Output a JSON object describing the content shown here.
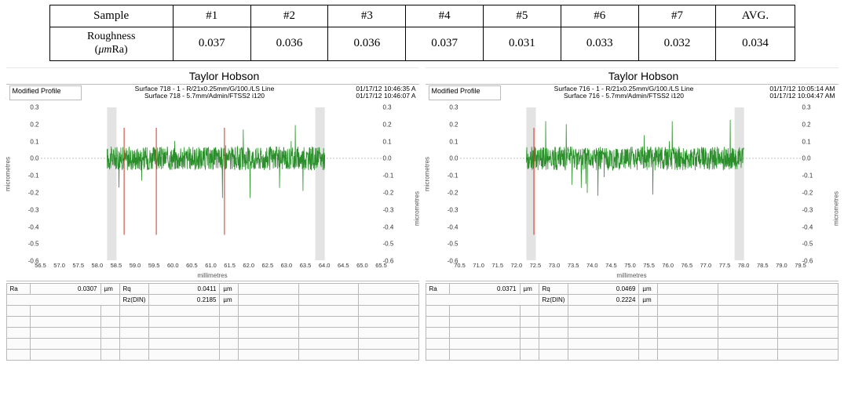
{
  "table": {
    "headers": [
      "Sample",
      "#1",
      "#2",
      "#3",
      "#4",
      "#5",
      "#6",
      "#7",
      "AVG."
    ],
    "row_label_line1": "Roughness",
    "row_label_line2": "(µmRa)",
    "values": [
      "0.037",
      "0.036",
      "0.036",
      "0.037",
      "0.031",
      "0.033",
      "0.032",
      "0.034"
    ],
    "border_color": "#000000",
    "header_fontsize": 15,
    "value_fontsize": 15
  },
  "charts": {
    "common": {
      "brand": "Taylor Hobson",
      "trace_color": "#2a8f2a",
      "excluded_fill": "#e3e3e3",
      "grid_color": "#d0d0d0",
      "zero_line_color": "#aaaaaa",
      "marker_color": "#cc3322",
      "y_label": "micrometres",
      "x_label": "millimetres",
      "ylim": [
        -0.6,
        0.3
      ],
      "ytick_step": 0.1,
      "profile_box_label": "Modified Profile"
    },
    "left": {
      "hdr_mid1": "Surface 718 - 1 - R/21x0.25mm/G/100./LS Line",
      "hdr_mid2": "Surface 718 - 5.7mm/Admin/FTSS2 i120",
      "hdr_ts1": "01/17/12 10:46:35 A",
      "hdr_ts2": "01/17/12 10:46:07 A",
      "xlim": [
        56.5,
        65.5
      ],
      "xtick_step": 0.5,
      "valid_range": [
        58.5,
        63.75
      ],
      "markers_x": [
        58.7,
        59.55,
        61.35
      ],
      "results": {
        "Ra": {
          "value": "0.0307",
          "unit": "µm"
        },
        "Rq": {
          "value": "0.0411",
          "unit": "µm"
        },
        "RzDIN": {
          "label": "Rz(DIN)",
          "value": "0.2185",
          "unit": "µm"
        }
      }
    },
    "right": {
      "hdr_mid1": "Surface 716 - 1 - R/21x0.25mm/G/100./LS Line",
      "hdr_mid2": "Surface 716 - 5.7mm/Admin/FTSS2 i120",
      "hdr_ts1": "01/17/12 10:05:14 AM",
      "hdr_ts2": "01/17/12 10:04:47 AM",
      "xlim": [
        70.5,
        79.5
      ],
      "xtick_step": 0.5,
      "valid_range": [
        72.5,
        77.75
      ],
      "markers_x": [
        72.45
      ],
      "results": {
        "Ra": {
          "value": "0.0371",
          "unit": "µm"
        },
        "Rq": {
          "value": "0.0469",
          "unit": "µm"
        },
        "RzDIN": {
          "label": "Rz(DIN)",
          "value": "0.2224",
          "unit": "µm"
        }
      }
    }
  },
  "scribble": "ʃ"
}
